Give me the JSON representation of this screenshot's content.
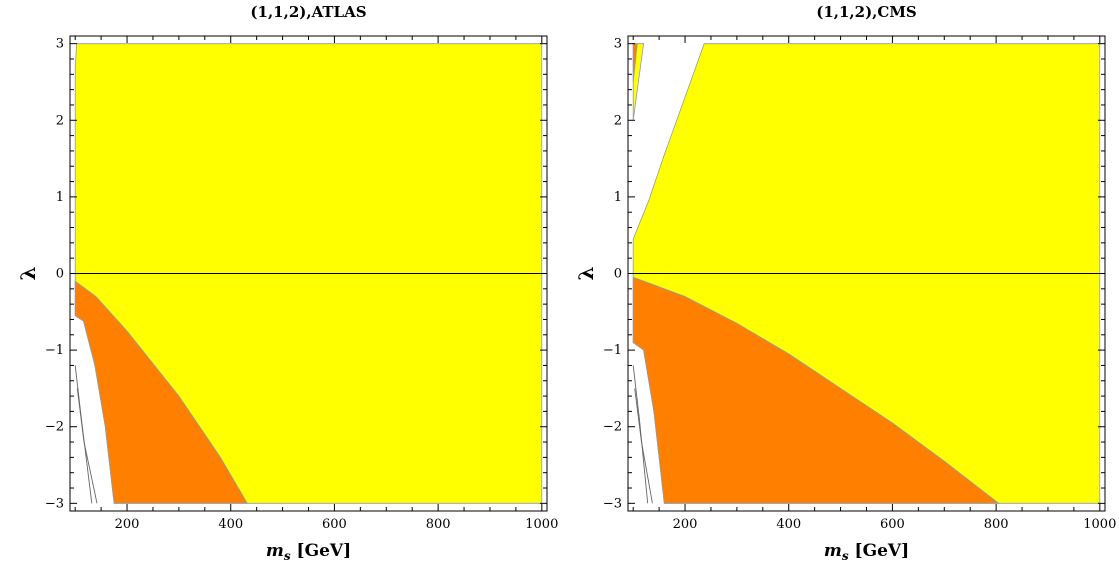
{
  "colors": {
    "yellow": "#ffff00",
    "orange": "#ff8000",
    "boundary": "#8c9bb4",
    "white": "#ffffff"
  },
  "chart_data": [
    {
      "type": "contour",
      "title": "(1,1,2),ATLAS",
      "xlabel": {
        "var": "m",
        "sub": "s",
        "unit": "[GeV]"
      },
      "ylabel": "λ",
      "xlim": [
        90,
        1010
      ],
      "ylim": [
        -3.1,
        3.1
      ],
      "xticks": [
        200,
        400,
        600,
        800,
        1000
      ],
      "yticks": [
        -3,
        -2,
        -1,
        0,
        1,
        2,
        3
      ],
      "ytick_labels": [
        "−3",
        "−2",
        "−1",
        "0",
        "1",
        "2",
        "3"
      ],
      "data_region": {
        "x": [
          100,
          1000
        ],
        "y": [
          -3,
          3
        ]
      },
      "regions": [
        {
          "name": "yellow-region",
          "color": "yellow",
          "points": [
            [
              103,
              3
            ],
            [
              1000,
              3
            ],
            [
              1000,
              -3
            ],
            [
              175,
              -3
            ],
            [
              158,
              -2.0
            ],
            [
              138,
              -1.2
            ],
            [
              116,
              -0.62
            ],
            [
              100,
              -0.55
            ],
            [
              100,
              2.7
            ]
          ]
        },
        {
          "name": "orange-region",
          "color": "orange",
          "points": [
            [
              100,
              -0.1
            ],
            [
              140,
              -0.3
            ],
            [
              200,
              -0.75
            ],
            [
              300,
              -1.6
            ],
            [
              380,
              -2.4
            ],
            [
              432,
              -3
            ],
            [
              175,
              -3
            ],
            [
              158,
              -2.0
            ],
            [
              138,
              -1.2
            ],
            [
              116,
              -0.62
            ],
            [
              100,
              -0.55
            ]
          ]
        },
        {
          "name": "white-sliver",
          "color": "white",
          "points": [
            [
              100,
              -1.1
            ],
            [
              108,
              -1.4
            ],
            [
              150,
              -3
            ],
            [
              134,
              -3
            ],
            [
              100,
              -1.4
            ]
          ]
        }
      ],
      "contour_lines": [
        [
          [
            100,
            -1.2
          ],
          [
            112,
            -1.9
          ],
          [
            132,
            -3
          ]
        ],
        [
          [
            104,
            -1.5
          ],
          [
            117,
            -2.2
          ],
          [
            142,
            -3
          ]
        ]
      ]
    },
    {
      "type": "contour",
      "title": "(1,1,2),CMS",
      "xlabel": {
        "var": "m",
        "sub": "s",
        "unit": "[GeV]"
      },
      "ylabel": "λ",
      "xlim": [
        90,
        1010
      ],
      "ylim": [
        -3.1,
        3.1
      ],
      "xticks": [
        200,
        400,
        600,
        800,
        1000
      ],
      "yticks": [
        -3,
        -2,
        -1,
        0,
        1,
        2,
        3
      ],
      "ytick_labels": [
        "−3",
        "−2",
        "−1",
        "0",
        "1",
        "2",
        "3"
      ],
      "data_region": {
        "x": [
          100,
          1000
        ],
        "y": [
          -3,
          3
        ]
      },
      "regions": [
        {
          "name": "yellow-region",
          "color": "yellow",
          "points": [
            [
              100,
              0.45
            ],
            [
              130,
              0.95
            ],
            [
              160,
              1.55
            ],
            [
              200,
              2.3
            ],
            [
              237,
              3
            ],
            [
              1000,
              3
            ],
            [
              1000,
              -3
            ],
            [
              160,
              -3
            ],
            [
              140,
              -1.8
            ],
            [
              120,
              -1.0
            ],
            [
              100,
              -0.9
            ]
          ]
        },
        {
          "name": "orange-region",
          "color": "orange",
          "points": [
            [
              100,
              -0.05
            ],
            [
              200,
              -0.3
            ],
            [
              300,
              -0.65
            ],
            [
              400,
              -1.05
            ],
            [
              500,
              -1.5
            ],
            [
              600,
              -1.95
            ],
            [
              700,
              -2.45
            ],
            [
              805,
              -3
            ],
            [
              160,
              -3
            ],
            [
              140,
              -1.8
            ],
            [
              120,
              -1.0
            ],
            [
              100,
              -0.9
            ]
          ]
        },
        {
          "name": "upper-yellow-sliver",
          "color": "yellow",
          "points": [
            [
              100,
              3
            ],
            [
              120,
              3
            ],
            [
              100,
              2.0
            ]
          ]
        },
        {
          "name": "upper-orange-sliver",
          "color": "orange",
          "points": [
            [
              100,
              3
            ],
            [
              108,
              3
            ],
            [
              100,
              2.5
            ]
          ]
        },
        {
          "name": "white-sliver",
          "color": "white",
          "points": [
            [
              100,
              -1.2
            ],
            [
              108,
              -1.5
            ],
            [
              140,
              -3
            ],
            [
              128,
              -3
            ],
            [
              100,
              -1.5
            ]
          ]
        }
      ],
      "contour_lines": [
        [
          [
            100,
            -1.2
          ],
          [
            112,
            -1.9
          ],
          [
            128,
            -3
          ]
        ],
        [
          [
            103,
            -1.5
          ],
          [
            116,
            -2.2
          ],
          [
            137,
            -3
          ]
        ]
      ]
    }
  ]
}
